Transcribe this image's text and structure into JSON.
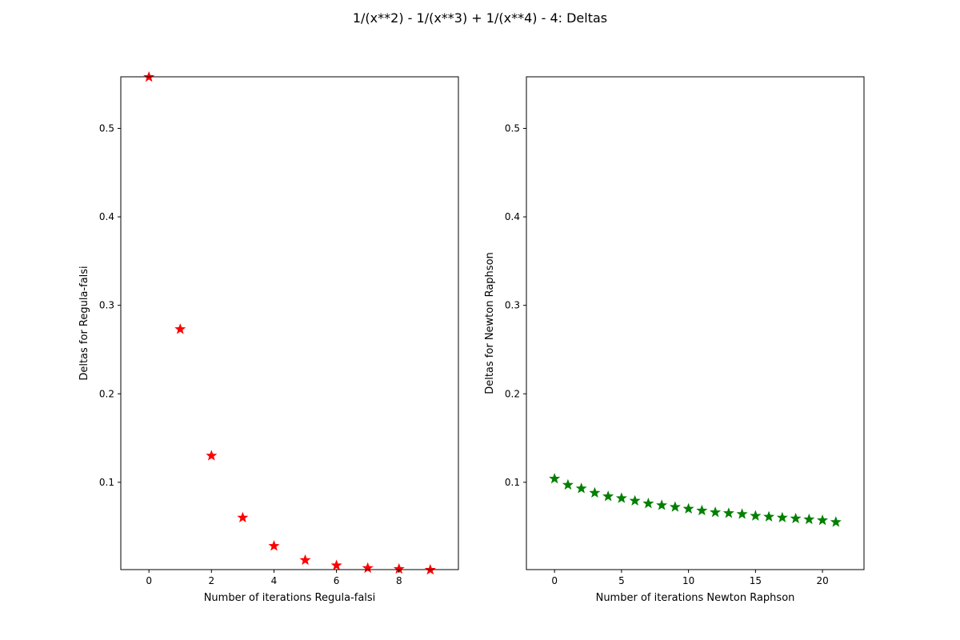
{
  "figure": {
    "suptitle": "1/(x**2) - 1/(x**3) + 1/(x**4) - 4: Deltas"
  },
  "chart_data": [
    {
      "type": "scatter",
      "title": "",
      "xlabel": "Number of iterations Regula-falsi",
      "ylabel": "Deltas for Regula-falsi",
      "xlim": [
        -0.9,
        9.9
      ],
      "ylim": [
        0.0013,
        0.5583
      ],
      "xticks": [
        0,
        2,
        4,
        6,
        8
      ],
      "xtick_labels": [
        "0",
        "2",
        "4",
        "6",
        "8"
      ],
      "yticks": [
        0.1,
        0.2,
        0.3,
        0.4,
        0.5
      ],
      "ytick_labels": [
        "0.1",
        "0.2",
        "0.3",
        "0.4",
        "0.5"
      ],
      "grid": false,
      "marker": "star",
      "color": "#ff0000",
      "x": [
        0,
        1,
        2,
        3,
        4,
        5,
        6,
        7,
        8,
        9
      ],
      "y": [
        0.558,
        0.273,
        0.13,
        0.06,
        0.028,
        0.012,
        0.006,
        0.003,
        0.002,
        0.001
      ]
    },
    {
      "type": "scatter",
      "title": "",
      "xlabel": "Number of iterations Newton Raphson",
      "ylabel": "Deltas for Newton Raphson",
      "xlim": [
        -2.1,
        23.1
      ],
      "ylim": [
        0.0013,
        0.5583
      ],
      "xticks": [
        0,
        5,
        10,
        15,
        20
      ],
      "xtick_labels": [
        "0",
        "5",
        "10",
        "15",
        "20"
      ],
      "yticks": [
        0.1,
        0.2,
        0.3,
        0.4,
        0.5
      ],
      "ytick_labels": [
        "0.1",
        "0.2",
        "0.3",
        "0.4",
        "0.5"
      ],
      "grid": false,
      "marker": "star",
      "color": "#008000",
      "x": [
        0,
        1,
        2,
        3,
        4,
        5,
        6,
        7,
        8,
        9,
        10,
        11,
        12,
        13,
        14,
        15,
        16,
        17,
        18,
        19,
        20,
        21
      ],
      "y": [
        0.104,
        0.097,
        0.093,
        0.088,
        0.084,
        0.082,
        0.079,
        0.076,
        0.074,
        0.072,
        0.07,
        0.068,
        0.066,
        0.065,
        0.064,
        0.062,
        0.061,
        0.06,
        0.059,
        0.058,
        0.057,
        0.055
      ]
    }
  ]
}
